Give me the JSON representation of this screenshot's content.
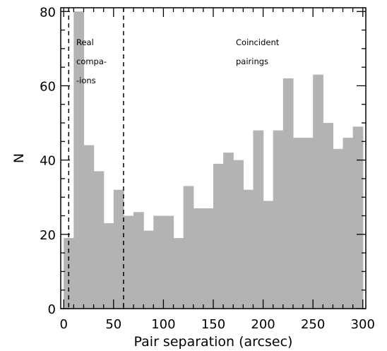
{
  "chart_data": {
    "type": "bar",
    "xlabel": "Pair separation (arcsec)",
    "ylabel": "N",
    "xlim": [
      -3,
      303
    ],
    "ylim": [
      0,
      81
    ],
    "bin_width": 10,
    "bin_starts": [
      0,
      10,
      20,
      30,
      40,
      50,
      60,
      70,
      80,
      90,
      100,
      110,
      120,
      130,
      140,
      150,
      160,
      170,
      180,
      190,
      200,
      210,
      220,
      230,
      240,
      250,
      260,
      270,
      280,
      290
    ],
    "values": [
      19,
      80,
      44,
      37,
      23,
      32,
      25,
      26,
      21,
      25,
      25,
      19,
      33,
      27,
      27,
      39,
      42,
      40,
      32,
      48,
      29,
      48,
      62,
      46,
      46,
      63,
      50,
      43,
      46,
      49
    ],
    "x_ticks": [
      0,
      50,
      100,
      150,
      200,
      250,
      300
    ],
    "x_tick_labels": [
      "0",
      "50",
      "100",
      "150",
      "200",
      "250",
      "300"
    ],
    "y_ticks": [
      0,
      20,
      40,
      60,
      80
    ],
    "y_tick_labels": [
      "0",
      "20",
      "40",
      "60",
      "80"
    ],
    "x_minor_step": 10,
    "y_minor_step": 5,
    "vlines": [
      5,
      60
    ],
    "annotations": {
      "real": [
        "Real",
        "compa-",
        "-ions"
      ],
      "coincident": [
        "Coincident",
        "pairings"
      ]
    },
    "bar_color": "#b3b3b3",
    "grid": false,
    "legend": "none"
  }
}
